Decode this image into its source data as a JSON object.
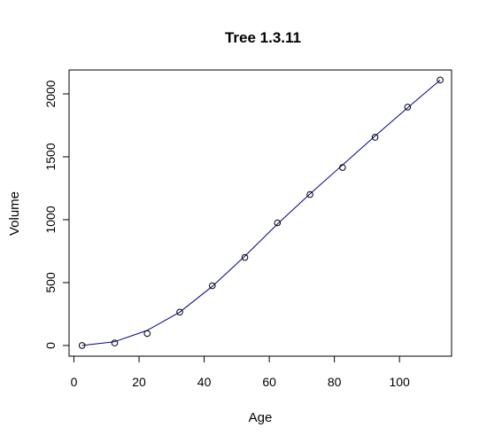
{
  "chart_data": {
    "type": "scatter",
    "title": "Tree 1.3.11",
    "xlabel": "Age",
    "ylabel": "Volume",
    "xlim": [
      -1.5,
      116
    ],
    "ylim": [
      -85,
      2190
    ],
    "xticks": [
      0,
      20,
      40,
      60,
      80,
      100
    ],
    "yticks": [
      0,
      500,
      1000,
      1500,
      2000
    ],
    "grid": false,
    "legend": "none",
    "line_color": "#00008B",
    "point_color": "#000000",
    "series": [
      {
        "x": [
          2.5,
          12.5,
          22.5,
          32.5,
          42.5,
          52.5,
          62.5,
          72.5,
          82.5,
          92.5,
          102.5,
          112.5
        ],
        "y": [
          0,
          20,
          95,
          265,
          475,
          700,
          975,
          1200,
          1415,
          1655,
          1895,
          2110
        ]
      }
    ],
    "fitted_line": {
      "x": [
        2.5,
        12.5,
        22.5,
        32.5,
        42.5,
        52.5,
        62.5,
        72.5,
        82.5,
        92.5,
        102.5,
        112.5
      ],
      "y": [
        0,
        30,
        120,
        265,
        470,
        710,
        965,
        1205,
        1435,
        1665,
        1890,
        2110
      ]
    }
  }
}
